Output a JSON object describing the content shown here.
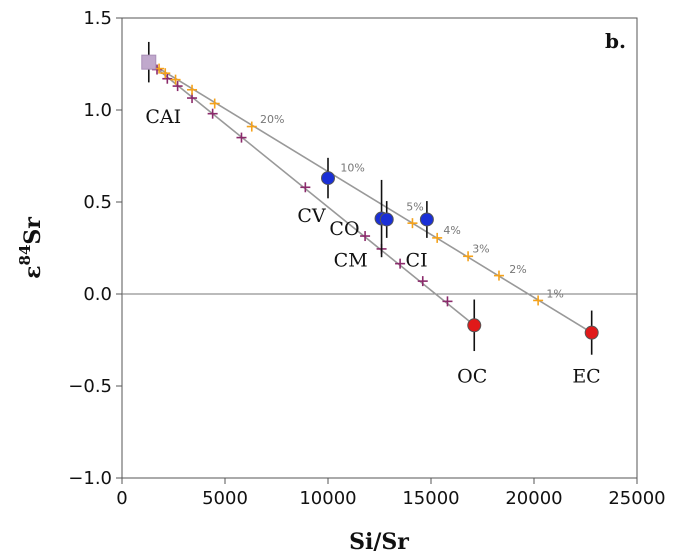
{
  "chart_data": {
    "type": "scatter",
    "panel_label": "b.",
    "xlabel": "Si/Sr",
    "ylabel_main": "ε",
    "ylabel_sup": "84",
    "ylabel_tail": "Sr",
    "xlim": [
      0,
      25000
    ],
    "ylim": [
      -1.0,
      1.5
    ],
    "xticks": [
      0,
      5000,
      10000,
      15000,
      20000,
      25000
    ],
    "yticks": [
      -1.0,
      -0.5,
      0.0,
      0.5,
      1.0,
      1.5
    ],
    "xtick_labels": [
      "0",
      "5000",
      "10000",
      "15000",
      "20000",
      "25000"
    ],
    "ytick_labels": [
      "−1.0",
      "−0.5",
      "0.0",
      "0.5",
      "1.0",
      "1.5"
    ],
    "zero_line": 0.0,
    "colors": {
      "upper_mix": "#f5a21a",
      "lower_mix": "#8b2a6b",
      "carbonaceous": "#1a2fd6",
      "ordinary_enstatite": "#e01919",
      "cai": "#c0a8cc",
      "mix_line": "#999999"
    },
    "mixing_lines": [
      {
        "from": [
          1300,
          1.26
        ],
        "to": [
          22800,
          -0.21
        ]
      },
      {
        "from": [
          1300,
          1.26
        ],
        "to": [
          17100,
          -0.17
        ]
      }
    ],
    "upper_mix_points": [
      {
        "x": 1800,
        "y": 1.225
      },
      {
        "x": 2100,
        "y": 1.2
      },
      {
        "x": 2600,
        "y": 1.165
      },
      {
        "x": 3400,
        "y": 1.11
      },
      {
        "x": 4500,
        "y": 1.035
      },
      {
        "x": 6300,
        "y": 0.91
      },
      {
        "x": 14100,
        "y": 0.385
      },
      {
        "x": 15300,
        "y": 0.305
      },
      {
        "x": 16800,
        "y": 0.205
      },
      {
        "x": 18300,
        "y": 0.1
      },
      {
        "x": 20200,
        "y": -0.035
      }
    ],
    "lower_mix_points": [
      {
        "x": 1700,
        "y": 1.22
      },
      {
        "x": 2200,
        "y": 1.17
      },
      {
        "x": 2700,
        "y": 1.13
      },
      {
        "x": 3400,
        "y": 1.065
      },
      {
        "x": 4400,
        "y": 0.98
      },
      {
        "x": 5800,
        "y": 0.85
      },
      {
        "x": 8900,
        "y": 0.58
      },
      {
        "x": 11800,
        "y": 0.315
      },
      {
        "x": 12600,
        "y": 0.245
      },
      {
        "x": 13500,
        "y": 0.165
      },
      {
        "x": 14600,
        "y": 0.07
      },
      {
        "x": 15800,
        "y": -0.04
      }
    ],
    "pct_labels": [
      {
        "text": "20%",
        "x": 6700,
        "y": 0.93
      },
      {
        "text": "10%",
        "x": 10600,
        "y": 0.665
      },
      {
        "text": "5%",
        "x": 13800,
        "y": 0.455
      },
      {
        "text": "4%",
        "x": 15600,
        "y": 0.325
      },
      {
        "text": "3%",
        "x": 17000,
        "y": 0.225
      },
      {
        "text": "2%",
        "x": 18800,
        "y": 0.115
      },
      {
        "text": "1%",
        "x": 20600,
        "y": -0.02
      }
    ],
    "meteorites": [
      {
        "name": "CAI",
        "x": 1300,
        "y": 1.26,
        "err": 0.11,
        "shape": "square",
        "group": "cai"
      },
      {
        "name": "CV",
        "x": 10000,
        "y": 0.63,
        "err": 0.11,
        "shape": "circle",
        "group": "carbonaceous"
      },
      {
        "name": "CO",
        "x": 12600,
        "y": 0.41,
        "err": 0.21,
        "shape": "circle",
        "group": "carbonaceous"
      },
      {
        "name": "CM",
        "x": 12850,
        "y": 0.405,
        "err": 0.1,
        "shape": "circle",
        "group": "carbonaceous"
      },
      {
        "name": "CI",
        "x": 14800,
        "y": 0.405,
        "err": 0.1,
        "shape": "circle",
        "group": "carbonaceous"
      },
      {
        "name": "OC",
        "x": 17100,
        "y": -0.17,
        "err": 0.14,
        "shape": "circle",
        "group": "ordinary_enstatite"
      },
      {
        "name": "EC",
        "x": 22800,
        "y": -0.21,
        "err": 0.12,
        "shape": "circle",
        "group": "ordinary_enstatite"
      }
    ],
    "annotations": [
      {
        "text": "CAI",
        "x": 2000,
        "y": 0.93
      },
      {
        "text": "CV",
        "x": 9200,
        "y": 0.39
      },
      {
        "text": "CO",
        "x": 10800,
        "y": 0.32
      },
      {
        "text": "CM",
        "x": 11100,
        "y": 0.15
      },
      {
        "text": "CI",
        "x": 14300,
        "y": 0.15
      },
      {
        "text": "OC",
        "x": 17000,
        "y": -0.48
      },
      {
        "text": "EC",
        "x": 22550,
        "y": -0.48
      }
    ]
  }
}
